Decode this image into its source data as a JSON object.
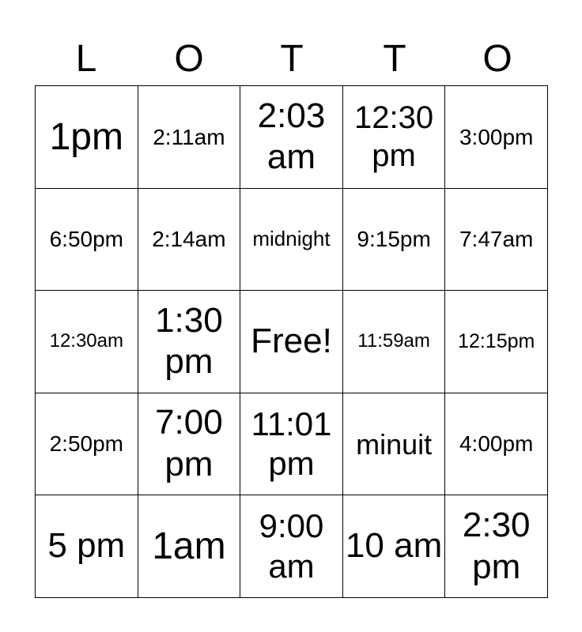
{
  "header": {
    "letters": [
      "L",
      "O",
      "T",
      "T",
      "O"
    ]
  },
  "cells": [
    [
      "1pm",
      "2:11am",
      "2:03 am",
      "12:30 pm",
      "3:00pm"
    ],
    [
      "6:50pm",
      "2:14am",
      "midnight",
      "9:15pm",
      "7:47am"
    ],
    [
      "12:30am",
      "1:30 pm",
      "Free!",
      "11:59am",
      "12:15pm"
    ],
    [
      "2:50pm",
      "7:00 pm",
      "11:01 pm",
      "minuit",
      "4:00pm"
    ],
    [
      "5 pm",
      "1am",
      "9:00 am",
      "10 am",
      "2:30 pm"
    ]
  ]
}
